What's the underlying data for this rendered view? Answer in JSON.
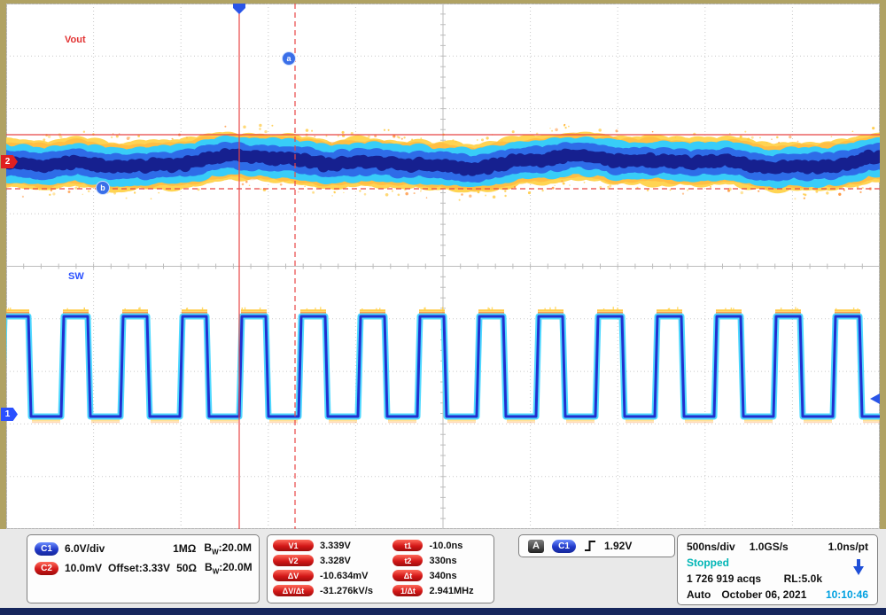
{
  "colors": {
    "ch1_blue": "#2a50e0",
    "ch2_red": "#e02020",
    "cursor_red": "#e84545",
    "stopped_teal": "#00b5b5",
    "time_blue": "#00a0e0",
    "bezel_khaki": "#b0a263"
  },
  "plot": {
    "ch2_label": "Vout",
    "ch1_label": "SW",
    "cursor_bubble_a": "a",
    "cursor_bubble_b": "b",
    "ch1_marker": "1",
    "ch2_marker": "2"
  },
  "channels": {
    "ch1": {
      "badge": "C1",
      "scale": "6.0V/div",
      "impedance": "1MΩ",
      "bw_base": "B",
      "bw_sub": "W",
      "bw_value": ":20.0M"
    },
    "ch2": {
      "badge": "C2",
      "scale": "10.0mV",
      "offset": "Offset:3.33V",
      "impedance": "50Ω",
      "bw_base": "B",
      "bw_sub": "W",
      "bw_value": ":20.0M"
    }
  },
  "measurements": {
    "voltage": [
      {
        "badge": "V1",
        "value": "3.339V"
      },
      {
        "badge": "V2",
        "value": "3.328V"
      },
      {
        "badge": "ΔV",
        "value": "-10.634mV"
      },
      {
        "badge": "ΔV/Δt",
        "value": "-31.276kV/s"
      }
    ],
    "time": [
      {
        "badge": "t1",
        "value": "-10.0ns"
      },
      {
        "badge": "t2",
        "value": "330ns"
      },
      {
        "badge": "Δt",
        "value": "340ns"
      },
      {
        "badge": "1/Δt",
        "value": "2.941MHz"
      }
    ]
  },
  "trigger": {
    "mode_badge": "A",
    "source_badge": "C1",
    "level": "1.92V"
  },
  "horizontal": {
    "scale": "500ns/div",
    "sample_rate": "1.0GS/s",
    "resolution": "1.0ns/pt"
  },
  "acquisition": {
    "state": "Stopped",
    "count": "1 726 919 acqs",
    "record_length": "RL:5.0k",
    "mode": "Auto",
    "date": "October 06, 2021",
    "time": "10:10:46"
  }
}
